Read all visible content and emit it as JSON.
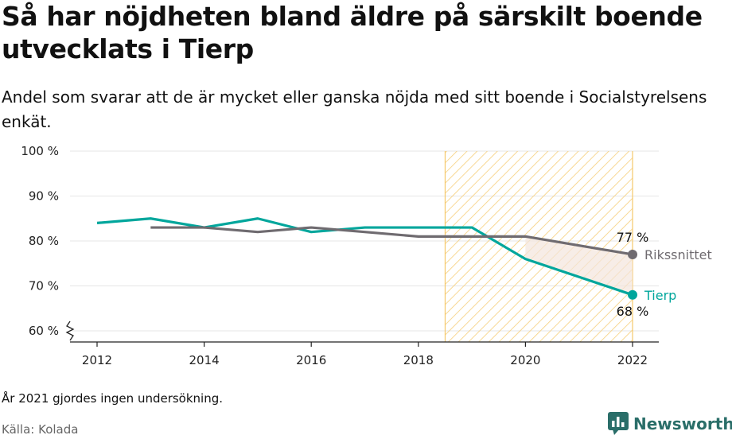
{
  "header": {
    "title": "Så har nöjdheten bland äldre på särskilt boende utvecklats i Tierp",
    "subtitle": "Andel som svarar att de är mycket eller ganska nöjda med sitt boende i Socialstyrelsens enkät."
  },
  "footer": {
    "note": "År 2021 gjordes ingen undersökning.",
    "source": "Källa: Kolada",
    "brand": "Newsworthy"
  },
  "colors": {
    "tierp": "#00a69c",
    "riks": "#6f6b70",
    "hatch": "#f5c96c",
    "axis": "#222222",
    "grid": "#e6e6e6"
  },
  "chart_data": {
    "type": "line",
    "x_ticks": [
      "2012",
      "2014",
      "2016",
      "2018",
      "2020",
      "2022"
    ],
    "y_ticks": [
      "60 %",
      "70 %",
      "80 %",
      "90 %",
      "100 %"
    ],
    "xlim": [
      2011.5,
      2022.5
    ],
    "ylim": [
      58,
      100
    ],
    "y_axis_break": true,
    "highlight_range": [
      2018.5,
      2022
    ],
    "series": [
      {
        "name": "Tierp",
        "color_key": "tierp",
        "points": [
          [
            2012,
            84
          ],
          [
            2013,
            85
          ],
          [
            2014,
            83
          ],
          [
            2015,
            85
          ],
          [
            2016,
            82
          ],
          [
            2017,
            83
          ],
          [
            2018,
            83
          ],
          [
            2019,
            83
          ],
          [
            2020,
            76
          ],
          [
            2022,
            68
          ]
        ],
        "end_label": "68 %"
      },
      {
        "name": "Rikssnittet",
        "color_key": "riks",
        "points": [
          [
            2013,
            83
          ],
          [
            2014,
            83
          ],
          [
            2015,
            82
          ],
          [
            2016,
            83
          ],
          [
            2017,
            82
          ],
          [
            2018,
            81
          ],
          [
            2019,
            81
          ],
          [
            2020,
            81
          ],
          [
            2022,
            77
          ]
        ],
        "end_label": "77 %"
      }
    ]
  }
}
